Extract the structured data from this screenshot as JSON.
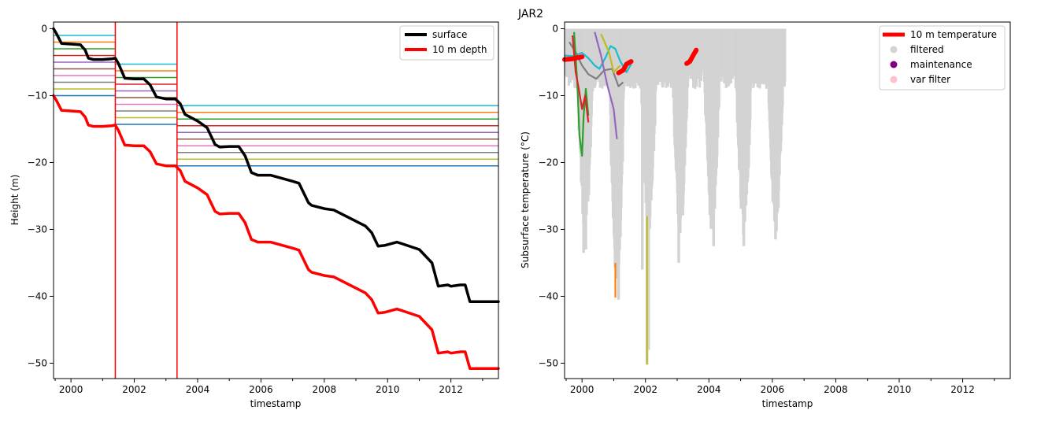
{
  "suptitle": "JAR2",
  "chart_data": [
    {
      "type": "line",
      "xlabel": "timestamp",
      "ylabel": "Height (m)",
      "xlim": [
        1999.45,
        2013.5
      ],
      "ylim": [
        -52.3,
        1.0
      ],
      "x_ticks": [
        "2000",
        "2002",
        "2004",
        "2006",
        "2008",
        "2010",
        "2012"
      ],
      "y_ticks": [
        "0",
        "−10",
        "−20",
        "−30",
        "−40",
        "−50"
      ],
      "legend_position": "top-right",
      "legend": [
        "surface",
        "10 m depth"
      ],
      "grid": false,
      "series": [
        {
          "name": "surface",
          "color": "#000000",
          "x": [
            1999.45,
            1999.55,
            1999.7,
            2000.0,
            2000.3,
            2000.45,
            2000.55,
            2000.7,
            2001.0,
            2001.3,
            2001.4,
            2001.5,
            2001.7,
            2002.0,
            2002.3,
            2002.5,
            2002.7,
            2003.0,
            2003.3,
            2003.45,
            2003.6,
            2004.0,
            2004.3,
            2004.55,
            2004.7,
            2005.0,
            2005.3,
            2005.5,
            2005.7,
            2005.9,
            2006.3,
            2007.0,
            2007.2,
            2007.5,
            2007.6,
            2008.0,
            2008.3,
            2009.3,
            2009.5,
            2009.7,
            2009.9,
            2010.3,
            2011.0,
            2011.4,
            2011.6,
            2011.9,
            2012.0,
            2012.3,
            2012.45,
            2012.6,
            2013.5
          ],
          "y": [
            0,
            -0.8,
            -2.2,
            -2.3,
            -2.4,
            -3.2,
            -4.4,
            -4.6,
            -4.6,
            -4.5,
            -4.4,
            -5.2,
            -7.4,
            -7.5,
            -7.5,
            -8.4,
            -10.2,
            -10.5,
            -10.5,
            -11.2,
            -12.8,
            -13.8,
            -14.8,
            -17.3,
            -17.7,
            -17.6,
            -17.6,
            -19.0,
            -21.5,
            -21.9,
            -21.9,
            -22.8,
            -23.1,
            -26.0,
            -26.4,
            -26.9,
            -27.1,
            -29.5,
            -30.5,
            -32.5,
            -32.4,
            -31.9,
            -33.0,
            -35.0,
            -38.5,
            -38.3,
            -38.5,
            -38.3,
            -38.3,
            -40.8,
            -40.8
          ]
        },
        {
          "name": "10 m depth",
          "color": "#ff0000",
          "x": [
            1999.45,
            1999.55,
            1999.7,
            2000.0,
            2000.3,
            2000.45,
            2000.55,
            2000.7,
            2001.0,
            2001.3,
            2001.4,
            2001.5,
            2001.7,
            2002.0,
            2002.3,
            2002.5,
            2002.7,
            2003.0,
            2003.3,
            2003.45,
            2003.6,
            2004.0,
            2004.3,
            2004.55,
            2004.7,
            2005.0,
            2005.3,
            2005.5,
            2005.7,
            2005.9,
            2006.3,
            2007.0,
            2007.2,
            2007.5,
            2007.6,
            2008.0,
            2008.3,
            2009.3,
            2009.5,
            2009.7,
            2009.9,
            2010.3,
            2011.0,
            2011.4,
            2011.6,
            2011.9,
            2012.0,
            2012.3,
            2012.45,
            2012.6,
            2013.5
          ],
          "y": [
            -10,
            -10.8,
            -12.2,
            -12.3,
            -12.4,
            -13.2,
            -14.4,
            -14.6,
            -14.6,
            -14.5,
            -14.4,
            -15.2,
            -17.4,
            -17.5,
            -17.5,
            -18.4,
            -20.2,
            -20.5,
            -20.5,
            -21.2,
            -22.8,
            -23.8,
            -24.8,
            -27.3,
            -27.7,
            -27.6,
            -27.6,
            -29.0,
            -31.5,
            -31.9,
            -31.9,
            -32.8,
            -33.1,
            -36.0,
            -36.4,
            -36.9,
            -37.1,
            -39.5,
            -40.5,
            -42.5,
            -42.4,
            -41.9,
            -43.0,
            -45.0,
            -48.5,
            -48.3,
            -48.5,
            -48.3,
            -48.3,
            -50.8,
            -50.8
          ]
        }
      ],
      "maintenance_lines": [
        2001.4,
        2003.35
      ],
      "sensor_depth_segments": [
        {
          "x0": 1999.45,
          "x1": 2001.4,
          "levels": [
            -1,
            -2,
            -3,
            -4,
            -5,
            -6,
            -7,
            -8,
            -9,
            -10
          ]
        },
        {
          "x0": 2001.4,
          "x1": 2003.35,
          "levels": [
            -5.3,
            -6.3,
            -7.3,
            -8.3,
            -9.3,
            -10.3,
            -11.3,
            -12.3,
            -13.3,
            -14.3
          ]
        },
        {
          "x0": 2003.35,
          "x1": 2013.5,
          "levels": [
            -11.5,
            -12.5,
            -13.5,
            -14.5,
            -15.5,
            -16.5,
            -17.5,
            -18.5,
            -19.5,
            -20.5
          ]
        }
      ],
      "sensor_colors": [
        "#17becf",
        "#ff7f0e",
        "#2ca02c",
        "#d62728",
        "#9467bd",
        "#8c564b",
        "#e377c2",
        "#7f7f7f",
        "#bcbd22",
        "#1f77b4"
      ]
    },
    {
      "type": "line",
      "xlabel": "timestamp",
      "ylabel": "Subsurface temperature (°C)",
      "xlim": [
        1999.45,
        2013.5
      ],
      "ylim": [
        -52.3,
        1.0
      ],
      "x_ticks": [
        "2000",
        "2002",
        "2004",
        "2006",
        "2008",
        "2010",
        "2012"
      ],
      "y_ticks": [
        "0",
        "−10",
        "−20",
        "−30",
        "−40",
        "−50"
      ],
      "legend_position": "top-right",
      "legend": [
        "10 m temperature",
        "filtered",
        "maintenance",
        "var filter"
      ],
      "grid": false,
      "legend_colors": [
        "#ff0000",
        "#d3d3d3",
        "#800080",
        "#ffc0cb"
      ],
      "series": [
        {
          "name": "10 m temperature",
          "color": "#ff0000",
          "segments": [
            {
              "x": [
                1999.45,
                1999.7,
                2000.0
              ],
              "y": [
                -4.6,
                -4.5,
                -4.2
              ]
            },
            {
              "x": [
                2001.15,
                2001.3,
                2001.4,
                2001.55
              ],
              "y": [
                -6.6,
                -6.2,
                -5.3,
                -4.9
              ]
            },
            {
              "x": [
                2003.3,
                2003.4,
                2003.5,
                2003.6
              ],
              "y": [
                -5.2,
                -4.9,
                -4.0,
                -3.2
              ]
            }
          ]
        },
        {
          "name": "sensor (cyan)",
          "color": "#17becf",
          "x": [
            1999.45,
            1999.7,
            2000.0,
            2000.2,
            2000.4,
            2000.55,
            2000.75,
            2000.9,
            2001.05,
            2001.2,
            2001.4,
            2001.55
          ],
          "y": [
            -4.0,
            -4.1,
            -3.6,
            -4.4,
            -5.5,
            -6.0,
            -4.2,
            -2.6,
            -3.0,
            -4.8,
            -6.5,
            -5.3
          ]
        },
        {
          "name": "sensor (gray)",
          "color": "#7f7f7f",
          "x": [
            1999.6,
            1999.8,
            2000.0,
            2000.2,
            2000.45,
            2000.7,
            2000.95,
            2001.15,
            2001.3
          ],
          "y": [
            -2.0,
            -3.5,
            -5.5,
            -6.8,
            -7.5,
            -6.2,
            -6.0,
            -8.6,
            -8.0
          ]
        },
        {
          "name": "sensor (green)",
          "color": "#2ca02c",
          "x": [
            1999.75,
            1999.85,
            1999.92,
            2000.0,
            2000.05,
            2000.12,
            2000.2
          ],
          "y": [
            -0.5,
            -8.0,
            -16.0,
            -19.0,
            -13.0,
            -9.0,
            -13.0
          ]
        },
        {
          "name": "sensor (red)",
          "color": "#d62728",
          "x": [
            1999.7,
            1999.8,
            1999.9,
            2000.0,
            2000.1,
            2000.2
          ],
          "y": [
            -1.0,
            -6.5,
            -9.0,
            -12.0,
            -10.0,
            -14.0
          ]
        },
        {
          "name": "sensor (purple)",
          "color": "#9467bd",
          "x": [
            2000.4,
            2000.6,
            2000.8,
            2001.0,
            2001.1
          ],
          "y": [
            -0.5,
            -4.0,
            -8.5,
            -12.0,
            -16.5
          ]
        },
        {
          "name": "sensor (olive)",
          "color": "#bcbd22",
          "x": [
            2000.6,
            2000.85,
            2001.0,
            2001.2
          ],
          "y": [
            -0.8,
            -3.5,
            -6.5,
            -5.5
          ]
        },
        {
          "name": "sensor (orange spike)",
          "color": "#ff7f0e",
          "x": [
            2001.05,
            2001.05
          ],
          "y": [
            -35.0,
            -40.2
          ]
        },
        {
          "name": "sensor (olive spike)",
          "color": "#bcbd22",
          "x": [
            2002.05,
            2002.05
          ],
          "y": [
            -28.0,
            -50.2
          ]
        }
      ]
    }
  ]
}
